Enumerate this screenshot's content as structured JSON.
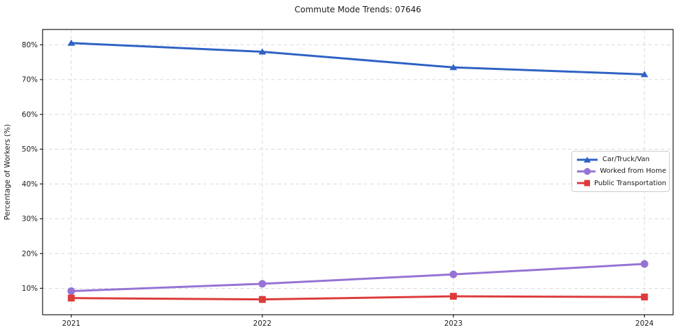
{
  "chart_data": {
    "type": "line",
    "title": "Commute Mode Trends: 07646",
    "xlabel": "",
    "ylabel": "Percentage of Workers (%)",
    "x": [
      2021,
      2022,
      2023,
      2024
    ],
    "x_tick_labels": [
      "2021",
      "2022",
      "2023",
      "2024"
    ],
    "y_ticks": [
      10,
      20,
      30,
      40,
      50,
      60,
      70,
      80
    ],
    "y_tick_suffix": "%",
    "ylim": [
      2.4,
      84.4
    ],
    "xlim": [
      2020.85,
      2024.15
    ],
    "grid": true,
    "grid_color": "#d9d9d9",
    "axis_color": "#1a1a1a",
    "legend_position": "center right",
    "series": [
      {
        "name": "Car/Truck/Van",
        "color": "#2e62c4",
        "marker": "triangle",
        "values": [
          80.5,
          78.0,
          73.5,
          71.5
        ]
      },
      {
        "name": "Worked from Home",
        "color": "#9673d4",
        "marker": "circle",
        "values": [
          9.2,
          11.3,
          14.0,
          17.0
        ]
      },
      {
        "name": "Public Transportation",
        "color": "#dd3b3b",
        "marker": "square",
        "values": [
          7.2,
          6.8,
          7.7,
          7.5
        ]
      }
    ]
  }
}
